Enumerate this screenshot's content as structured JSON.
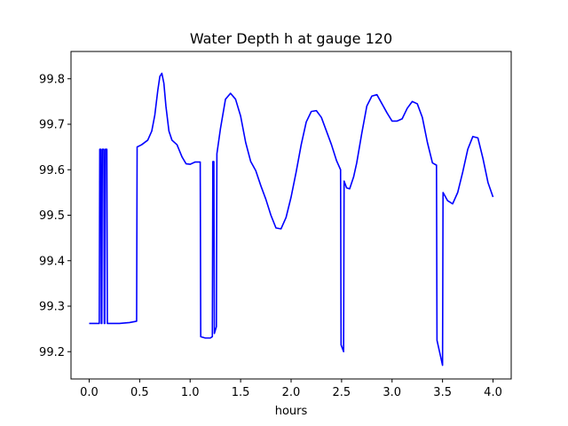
{
  "chart_data": {
    "type": "line",
    "title": "Water Depth h at gauge 120",
    "xlabel": "hours",
    "ylabel": "",
    "xlim": [
      -0.18,
      4.18
    ],
    "ylim": [
      99.14,
      99.86
    ],
    "xticks": [
      "0.0",
      "0.5",
      "1.0",
      "1.5",
      "2.0",
      "2.5",
      "3.0",
      "3.5",
      "4.0"
    ],
    "yticks": [
      "99.2",
      "99.3",
      "99.4",
      "99.5",
      "99.6",
      "99.7",
      "99.8"
    ],
    "grid": false,
    "series": [
      {
        "color": "#0000ff",
        "points": [
          [
            0.0,
            99.262
          ],
          [
            0.1,
            99.262
          ],
          [
            0.105,
            99.645
          ],
          [
            0.115,
            99.645
          ],
          [
            0.12,
            99.262
          ],
          [
            0.125,
            99.262
          ],
          [
            0.13,
            99.645
          ],
          [
            0.145,
            99.645
          ],
          [
            0.15,
            99.262
          ],
          [
            0.155,
            99.262
          ],
          [
            0.16,
            99.645
          ],
          [
            0.175,
            99.645
          ],
          [
            0.18,
            99.262
          ],
          [
            0.3,
            99.262
          ],
          [
            0.4,
            99.264
          ],
          [
            0.47,
            99.267
          ],
          [
            0.475,
            99.65
          ],
          [
            0.52,
            99.655
          ],
          [
            0.58,
            99.665
          ],
          [
            0.62,
            99.685
          ],
          [
            0.65,
            99.72
          ],
          [
            0.68,
            99.775
          ],
          [
            0.7,
            99.805
          ],
          [
            0.72,
            99.812
          ],
          [
            0.74,
            99.79
          ],
          [
            0.76,
            99.74
          ],
          [
            0.79,
            99.685
          ],
          [
            0.82,
            99.665
          ],
          [
            0.87,
            99.655
          ],
          [
            0.92,
            99.628
          ],
          [
            0.96,
            99.613
          ],
          [
            1.0,
            99.612
          ],
          [
            1.05,
            99.617
          ],
          [
            1.1,
            99.617
          ],
          [
            1.105,
            99.233
          ],
          [
            1.15,
            99.23
          ],
          [
            1.2,
            99.23
          ],
          [
            1.22,
            99.233
          ],
          [
            1.225,
            99.618
          ],
          [
            1.235,
            99.618
          ],
          [
            1.24,
            99.24
          ],
          [
            1.26,
            99.255
          ],
          [
            1.265,
            99.635
          ],
          [
            1.3,
            99.69
          ],
          [
            1.35,
            99.755
          ],
          [
            1.4,
            99.768
          ],
          [
            1.45,
            99.755
          ],
          [
            1.5,
            99.718
          ],
          [
            1.55,
            99.66
          ],
          [
            1.6,
            99.618
          ],
          [
            1.65,
            99.598
          ],
          [
            1.7,
            99.565
          ],
          [
            1.75,
            99.535
          ],
          [
            1.8,
            99.5
          ],
          [
            1.85,
            99.472
          ],
          [
            1.9,
            99.47
          ],
          [
            1.95,
            99.495
          ],
          [
            2.0,
            99.54
          ],
          [
            2.05,
            99.595
          ],
          [
            2.1,
            99.655
          ],
          [
            2.15,
            99.705
          ],
          [
            2.2,
            99.728
          ],
          [
            2.25,
            99.73
          ],
          [
            2.3,
            99.715
          ],
          [
            2.35,
            99.685
          ],
          [
            2.4,
            99.655
          ],
          [
            2.45,
            99.62
          ],
          [
            2.49,
            99.6
          ],
          [
            2.495,
            99.215
          ],
          [
            2.52,
            99.2
          ],
          [
            2.525,
            99.575
          ],
          [
            2.55,
            99.56
          ],
          [
            2.58,
            99.558
          ],
          [
            2.62,
            99.585
          ],
          [
            2.65,
            99.615
          ],
          [
            2.7,
            99.68
          ],
          [
            2.75,
            99.74
          ],
          [
            2.8,
            99.762
          ],
          [
            2.85,
            99.765
          ],
          [
            2.9,
            99.745
          ],
          [
            2.95,
            99.725
          ],
          [
            3.0,
            99.707
          ],
          [
            3.05,
            99.707
          ],
          [
            3.1,
            99.712
          ],
          [
            3.15,
            99.735
          ],
          [
            3.2,
            99.75
          ],
          [
            3.25,
            99.745
          ],
          [
            3.3,
            99.715
          ],
          [
            3.35,
            99.66
          ],
          [
            3.4,
            99.615
          ],
          [
            3.44,
            99.61
          ],
          [
            3.445,
            99.225
          ],
          [
            3.48,
            99.19
          ],
          [
            3.5,
            99.17
          ],
          [
            3.505,
            99.55
          ],
          [
            3.55,
            99.532
          ],
          [
            3.6,
            99.525
          ],
          [
            3.65,
            99.55
          ],
          [
            3.7,
            99.595
          ],
          [
            3.75,
            99.645
          ],
          [
            3.8,
            99.673
          ],
          [
            3.85,
            99.67
          ],
          [
            3.9,
            99.625
          ],
          [
            3.95,
            99.572
          ],
          [
            4.0,
            99.54
          ]
        ]
      }
    ]
  }
}
